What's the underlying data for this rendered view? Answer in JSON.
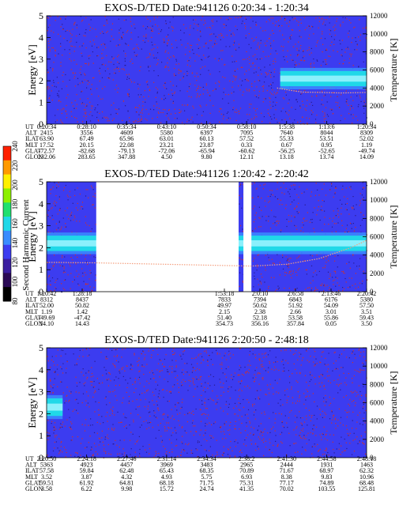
{
  "colorbar": {
    "label": "Second Harmonic Current",
    "ticks": [
      "80",
      "100",
      "120",
      "140",
      "160",
      "180",
      "200",
      "220",
      "240"
    ],
    "colors": [
      "#000000",
      "#2a0a55",
      "#3a1ea0",
      "#3c3cf0",
      "#3a8cff",
      "#20d8e8",
      "#20e070",
      "#8ef000",
      "#fff000",
      "#ff9a00",
      "#ff2000"
    ]
  },
  "colors": {
    "background_blue": "#3c3cf0",
    "noise_red": "#d0302a",
    "band_cyan": "#20d8e8",
    "band_core": "#9ff4ff",
    "temp_trace": "#f4a080"
  },
  "chart_data": [
    {
      "type": "heatmap",
      "title": "EXOS-D/TED   Date:941126  0:20:34 - 1:20:34",
      "ylabel": "Energy [eV]",
      "y2label": "Temperature [K]",
      "ylim": [
        0,
        5
      ],
      "y_ticks": [
        "0",
        "1",
        "2",
        "3",
        "4",
        "5"
      ],
      "y2lim": [
        0,
        12000
      ],
      "y2_ticks": [
        "0",
        "2000",
        "4000",
        "6000",
        "8000",
        "10000",
        "12000"
      ],
      "band": {
        "start_fraction": 0.73,
        "end_fraction": 1.0,
        "energy_center": 2.1,
        "energy_width": 0.7
      },
      "data_gaps": [],
      "temperature_trace": {
        "x_fraction": [
          0.72,
          0.76,
          0.8,
          0.86,
          0.92,
          1.0
        ],
        "kelvin": [
          4000,
          3750,
          3550,
          3500,
          3450,
          3500
        ]
      },
      "table": {
        "row_labels": [
          "UT",
          "ALT",
          "ILAT",
          "MLT",
          "GLAT",
          "GLON"
        ],
        "columns": [
          [
            "0:20:34",
            "2415",
            "63.90",
            "17.52",
            "-72.57",
            "232.06"
          ],
          [
            "0:28:10",
            "3556",
            "67.49",
            "20.15",
            "-82.68",
            "283.65"
          ],
          [
            "0:35:34",
            "4609",
            "65.96",
            "22.08",
            "-79.13",
            "347.88"
          ],
          [
            "0:43:10",
            "5580",
            "63.01",
            "23.21",
            "-72.06",
            "4.50"
          ],
          [
            "0:50:34",
            "6397",
            "60.13",
            "23.87",
            "-65.94",
            "9.80"
          ],
          [
            "0:58:10",
            "7095",
            "57.52",
            "0.33",
            "-60.62",
            "12.11"
          ],
          [
            "1:5:38",
            "7640",
            "55.33",
            "0.67",
            "-56.25",
            "13.18"
          ],
          [
            "1:13:6",
            "8044",
            "53.51",
            "0.95",
            "-52.65",
            "13.74"
          ],
          [
            "1:20:34",
            "8309",
            "52.02",
            "1.19",
            "-49.74",
            "14.09"
          ]
        ]
      }
    },
    {
      "type": "heatmap",
      "title": "EXOS-D/TED   Date:941126  1:20:42 - 2:20:42",
      "ylabel": "Energy [eV]",
      "y2label": "Temperature [K]",
      "ylim": [
        0,
        5
      ],
      "y_ticks": [
        "0",
        "1",
        "2",
        "3",
        "4",
        "5"
      ],
      "y2lim": [
        0,
        12000
      ],
      "y2_ticks": [
        "0",
        "2000",
        "4000",
        "6000",
        "8000",
        "10000",
        "12000"
      ],
      "band": {
        "start_fraction": 0.0,
        "end_fraction": 1.0,
        "energy_center": 2.2,
        "energy_width": 0.7
      },
      "data_gaps": [
        [
          0.155,
          0.6
        ],
        [
          0.615,
          0.64
        ]
      ],
      "temperature_trace": {
        "x_fraction": [
          0.0,
          0.15,
          0.64,
          0.75,
          0.85,
          0.95,
          1.0
        ],
        "kelvin": [
          3200,
          3150,
          2800,
          3000,
          3600,
          4800,
          5600
        ]
      },
      "table": {
        "row_labels": [
          "UT",
          "ALT",
          "ILAT",
          "MLT",
          "GLAT",
          "GLON"
        ],
        "columns": [
          [
            "1:20:42",
            "8312",
            "52.00",
            "1.19",
            "-49.69",
            "14.10"
          ],
          [
            "1:28:18",
            "8437",
            "50.82",
            "1.42",
            "-47.42",
            "14.43"
          ],
          [
            "",
            "",
            "",
            "",
            "",
            ""
          ],
          [
            "",
            "",
            "",
            "",
            "",
            ""
          ],
          [
            "",
            "",
            "",
            "",
            "",
            ""
          ],
          [
            "1:53:18",
            "7833",
            "49.97",
            "2.15",
            "51.40",
            "354.73"
          ],
          [
            "2:0:10",
            "7394",
            "50.62",
            "2.38",
            "52.18",
            "356.16"
          ],
          [
            "2:6:58",
            "6843",
            "51.92",
            "2.66",
            "53.58",
            "357.84"
          ],
          [
            "2:13:46",
            "6176",
            "54.09",
            "3.01",
            "55.86",
            "0.05"
          ],
          [
            "2:20:42",
            "5380",
            "57.50",
            "3.51",
            "59.43",
            "3.50"
          ]
        ]
      }
    },
    {
      "type": "heatmap",
      "title": "EXOS-D/TED   Date:941126  2:20:50 - 2:48:18",
      "ylabel": "Energy [eV]",
      "y2label": "Temperature [K]",
      "ylim": [
        0,
        5
      ],
      "y_ticks": [
        "0",
        "1",
        "2",
        "3",
        "4",
        "5"
      ],
      "y2lim": [
        0,
        12000
      ],
      "y2_ticks": [
        "0",
        "2000",
        "4000",
        "6000",
        "8000",
        "10000",
        "12000"
      ],
      "band": {
        "start_fraction": 0.0,
        "end_fraction": 0.05,
        "energy_center": 2.3,
        "energy_width": 0.8
      },
      "data_gaps": [],
      "temperature_trace": {
        "x_fraction": [],
        "kelvin": []
      },
      "table": {
        "row_labels": [
          "UT",
          "ALT",
          "ILAT",
          "MLT",
          "GLAT",
          "GLON"
        ],
        "columns": [
          [
            "2:20:50",
            "5363",
            "57.58",
            "3.52",
            "59.51",
            "3.58"
          ],
          [
            "2:24:18",
            "4923",
            "59.84",
            "3.87",
            "61.92",
            "6.22"
          ],
          [
            "2:27:46",
            "4457",
            "62.48",
            "4.32",
            "64.81",
            "9.98"
          ],
          [
            "2:31:14",
            "3969",
            "65.43",
            "4.93",
            "68.18",
            "15.72"
          ],
          [
            "2:34:34",
            "3483",
            "68.35",
            "5.75",
            "71.75",
            "24.74"
          ],
          [
            "2:38:2",
            "2965",
            "70.89",
            "6.93",
            "75.31",
            "41.35"
          ],
          [
            "2:41:30",
            "2444",
            "71.67",
            "8.38",
            "77.17",
            "70.02"
          ],
          [
            "2:44:58",
            "1931",
            "68.97",
            "9.83",
            "74.89",
            "103.55"
          ],
          [
            "2:48:18",
            "1463",
            "62.32",
            "10.96",
            "68.48",
            "125.81"
          ]
        ]
      }
    }
  ]
}
